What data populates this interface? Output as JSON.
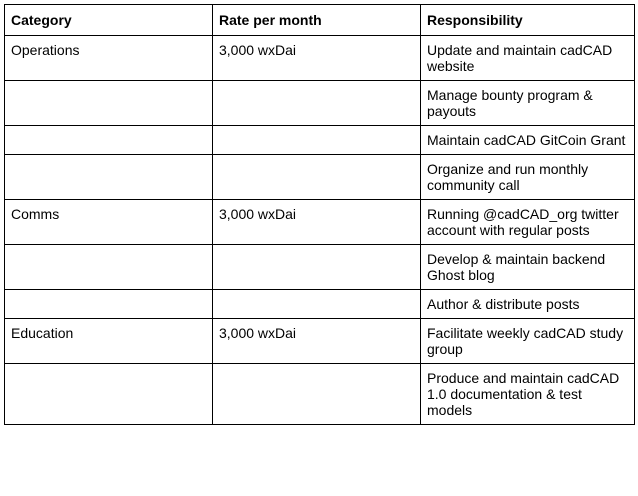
{
  "table": {
    "headers": [
      "Category",
      "Rate per month",
      "Responsibility"
    ],
    "rows": [
      [
        "Operations",
        "3,000 wxDai",
        "Update and maintain cadCAD website"
      ],
      [
        "",
        "",
        "Manage bounty program & payouts"
      ],
      [
        "",
        "",
        "Maintain cadCAD GitCoin Grant"
      ],
      [
        "",
        "",
        "Organize and run monthly community call"
      ],
      [
        "Comms",
        "3,000 wxDai",
        "Running @cadCAD_org twitter account with regular posts"
      ],
      [
        "",
        "",
        "Develop & maintain backend Ghost blog"
      ],
      [
        "",
        "",
        "Author & distribute posts"
      ],
      [
        "Education",
        "3,000 wxDai",
        "Facilitate weekly cadCAD study group"
      ],
      [
        "",
        "",
        "Produce and maintain cadCAD 1.0 documentation & test models"
      ]
    ]
  }
}
